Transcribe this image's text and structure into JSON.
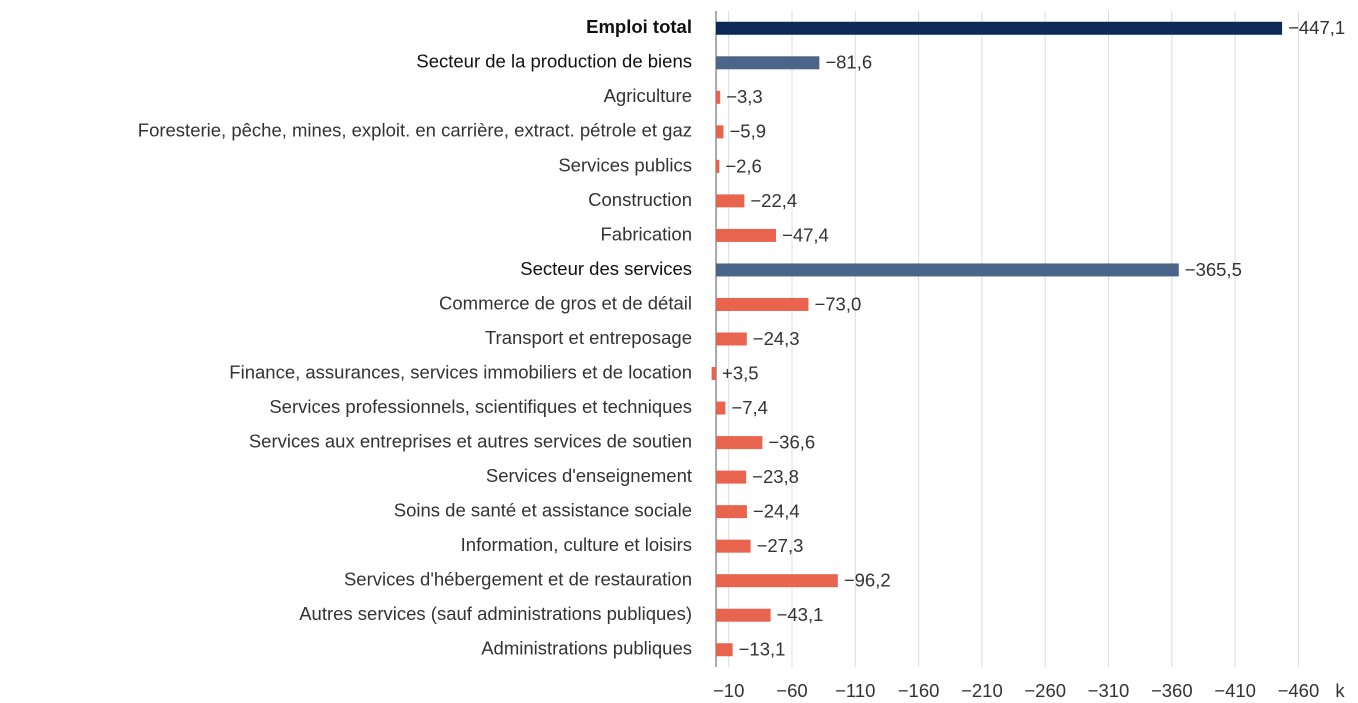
{
  "chart_data": {
    "type": "bar",
    "orientation": "horizontal",
    "categories": [
      "Emploi total",
      "Secteur de la production de biens",
      "Agriculture",
      "Foresterie, pêche, mines, exploit. en carrière, extract. pétrole et gaz",
      "Services publics",
      "Construction",
      "Fabrication",
      "Secteur des services",
      "Commerce de gros et de détail",
      "Transport et entreposage",
      "Finance, assurances, services immobiliers et de location",
      "Services professionnels, scientifiques et techniques",
      "Services aux entreprises et autres services de soutien",
      "Services d'enseignement",
      "Soins de santé et assistance sociale",
      "Information, culture et loisirs",
      "Services d'hébergement et de restauration",
      "Autres services (sauf administrations publiques)",
      "Administrations publiques"
    ],
    "values": [
      -447.1,
      -81.6,
      -3.3,
      -5.9,
      -2.6,
      -22.4,
      -47.4,
      -365.5,
      -73.0,
      -24.3,
      3.5,
      -7.4,
      -36.6,
      -23.8,
      -24.4,
      -27.3,
      -96.2,
      -43.1,
      -13.1
    ],
    "value_labels": [
      "−447,1",
      "−81,6",
      "−3,3",
      "−5,9",
      "−2,6",
      "−22,4",
      "−47,4",
      "−365,5",
      "−73,0",
      "−24,3",
      "+3,5",
      "−7,4",
      "−36,6",
      "−23,8",
      "−24,4",
      "−27,3",
      "−96,2",
      "−43,1",
      "−13,1"
    ],
    "colors": [
      "#0b2a55",
      "#4a6587",
      "#e8644f",
      "#e8644f",
      "#e8644f",
      "#e8644f",
      "#e8644f",
      "#4a6587",
      "#e8644f",
      "#e8644f",
      "#e8644f",
      "#e8644f",
      "#e8644f",
      "#e8644f",
      "#e8644f",
      "#e8644f",
      "#e8644f",
      "#e8644f",
      "#e8644f"
    ],
    "xlim": [
      5,
      -475
    ],
    "xticks": [
      {
        "value": -10,
        "label": "−10"
      },
      {
        "value": -60,
        "label": "−60"
      },
      {
        "value": -110,
        "label": "−110"
      },
      {
        "value": -160,
        "label": "−160"
      },
      {
        "value": -210,
        "label": "−210"
      },
      {
        "value": -260,
        "label": "−260"
      },
      {
        "value": -310,
        "label": "−310"
      },
      {
        "value": -360,
        "label": "−360"
      },
      {
        "value": -410,
        "label": "−410"
      },
      {
        "value": -460,
        "label": "−460"
      }
    ],
    "xlabel": "k",
    "grid": true
  }
}
